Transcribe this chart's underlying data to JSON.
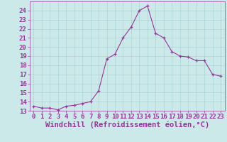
{
  "x": [
    0,
    1,
    2,
    3,
    4,
    5,
    6,
    7,
    8,
    9,
    10,
    11,
    12,
    13,
    14,
    15,
    16,
    17,
    18,
    19,
    20,
    21,
    22,
    23
  ],
  "y": [
    13.5,
    13.3,
    13.3,
    13.1,
    13.5,
    13.6,
    13.8,
    14.0,
    15.2,
    18.7,
    19.2,
    21.0,
    22.2,
    24.0,
    24.5,
    21.5,
    21.0,
    19.5,
    19.0,
    18.9,
    18.5,
    18.5,
    17.0,
    16.8
  ],
  "line_color": "#993399",
  "marker": "+",
  "bg_color": "#cce9e9",
  "grid_color": "#aad4d4",
  "xlabel": "Windchill (Refroidissement éolien,°C)",
  "xlabel_color": "#993399",
  "tick_color": "#993399",
  "ylim": [
    13,
    25
  ],
  "xlim": [
    -0.5,
    23.5
  ],
  "yticks": [
    13,
    14,
    15,
    16,
    17,
    18,
    19,
    20,
    21,
    22,
    23,
    24
  ],
  "xticks": [
    0,
    1,
    2,
    3,
    4,
    5,
    6,
    7,
    8,
    9,
    10,
    11,
    12,
    13,
    14,
    15,
    16,
    17,
    18,
    19,
    20,
    21,
    22,
    23
  ],
  "tick_fontsize": 6.5,
  "xlabel_fontsize": 7.5
}
